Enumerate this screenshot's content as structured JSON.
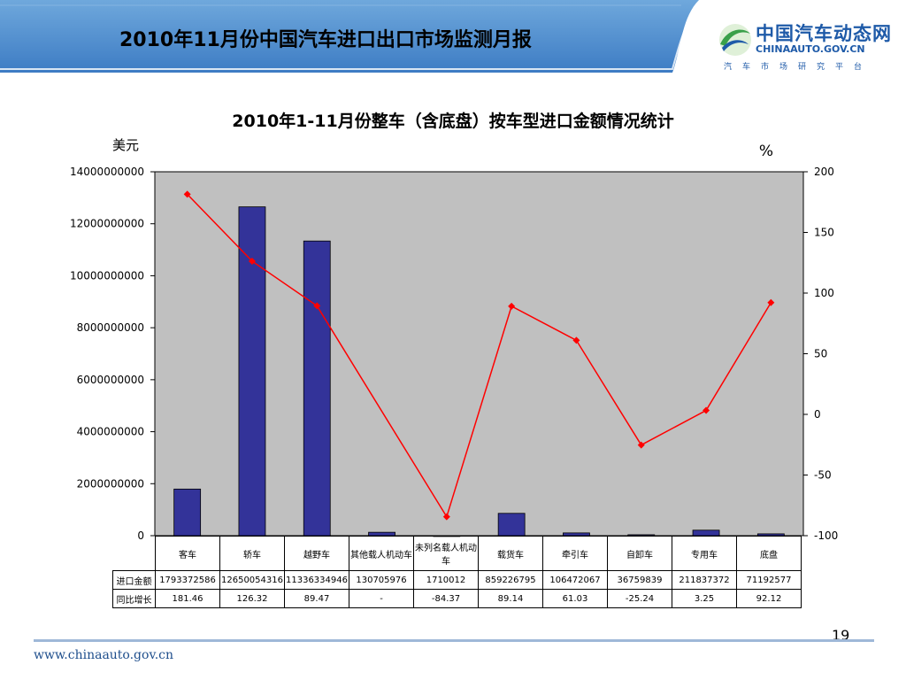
{
  "slide": {
    "title": "2010年11月份中国汽车进口出口市场监测月报",
    "page_number": "19",
    "footer_url": "www.chinaauto.gov.cn"
  },
  "brand": {
    "name": "中国汽车动态网",
    "domain": "CHINAAUTO.GOV.CN",
    "tagline": "汽车市场研究平台"
  },
  "colors": {
    "bar": "#333399",
    "line": "#ff0000",
    "plot_bg": "#c0c0c0",
    "banner": "#5b9bd5"
  },
  "chart_data": {
    "type": "bar",
    "title": "2010年1-11月份整车（含底盘）按车型进口金额情况统计",
    "ylabel": "美元",
    "y2label": "%",
    "ylim": [
      0,
      14000000000
    ],
    "y2lim": [
      -100,
      200
    ],
    "yticks": [
      "14000000000",
      "12000000000",
      "10000000000",
      "8000000000",
      "6000000000",
      "4000000000",
      "2000000000",
      "0"
    ],
    "y2ticks": [
      "200",
      "150",
      "100",
      "50",
      "0",
      "-50",
      "-100"
    ],
    "categories": [
      "客车",
      "轿车",
      "越野车",
      "其他载人机动车",
      "未列名载人机动车",
      "载货车",
      "牵引车",
      "自卸车",
      "专用车",
      "底盘"
    ],
    "series": [
      {
        "name": "进口金额",
        "type": "bar",
        "axis": "left",
        "values": [
          1793372586,
          12650054316,
          11336334946,
          130705976,
          1710012,
          859226795,
          106472067,
          36759839,
          211837372,
          71192577
        ]
      },
      {
        "name": "同比增长",
        "type": "line",
        "axis": "right",
        "values": [
          181.46,
          126.32,
          89.47,
          null,
          -84.37,
          89.14,
          61.03,
          -25.24,
          3.25,
          92.12
        ]
      }
    ],
    "table": {
      "row_labels": [
        "进口金额",
        "同比增长"
      ],
      "import_row": [
        "1793372586",
        "12650054316",
        "11336334946",
        "130705976",
        "1710012",
        "859226795",
        "106472067",
        "36759839",
        "211837372",
        "71192577"
      ],
      "growth_row": [
        "181.46",
        "126.32",
        "89.47",
        "-",
        "-84.37",
        "89.14",
        "61.03",
        "-25.24",
        "3.25",
        "92.12"
      ]
    },
    "grid": false,
    "legend": "table-below"
  }
}
